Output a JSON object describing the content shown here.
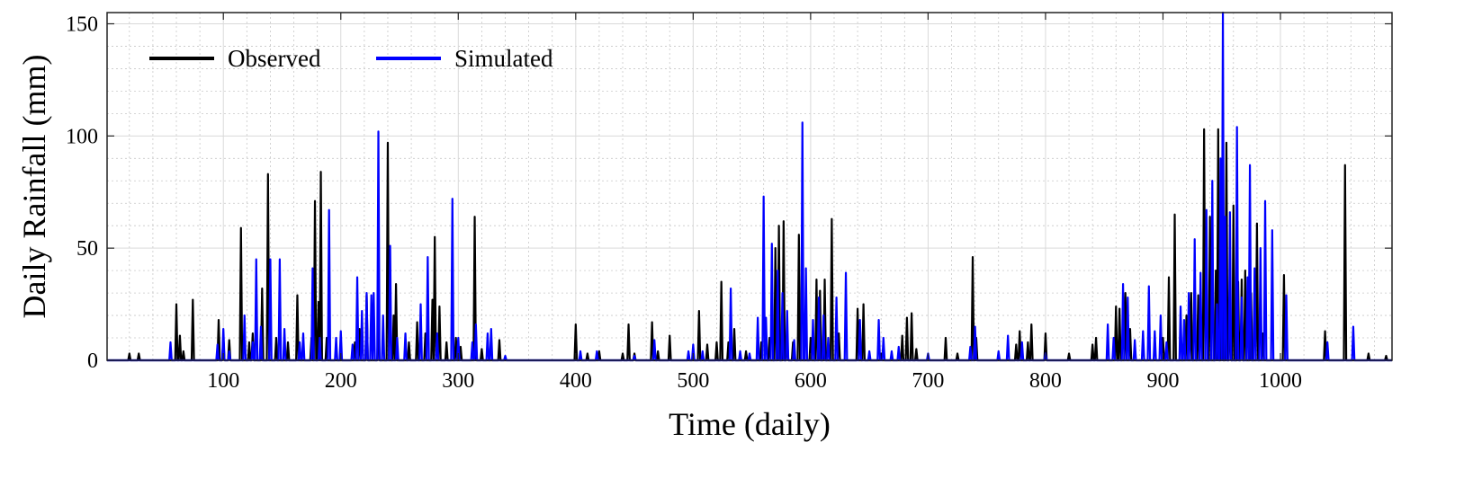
{
  "chart_data": {
    "type": "line",
    "title": "",
    "xlabel": "Time (daily)",
    "ylabel": "Daily Rainfall (mm)",
    "xlim": [
      1,
      1095
    ],
    "ylim": [
      0,
      155
    ],
    "x_ticks": [
      100,
      200,
      300,
      400,
      500,
      600,
      700,
      800,
      900,
      1000
    ],
    "y_ticks": [
      0,
      50,
      100,
      150
    ],
    "grid": true,
    "minor_grid": true,
    "legend_position": "top-left",
    "colors": {
      "observed": "#000000",
      "simulated": "#0000ff",
      "grid": "#d9d9d9"
    },
    "series": [
      {
        "name": "Observed",
        "color": "#000000",
        "peaks": [
          [
            20,
            3
          ],
          [
            28,
            3
          ],
          [
            60,
            25
          ],
          [
            63,
            11
          ],
          [
            66,
            4
          ],
          [
            74,
            27
          ],
          [
            96,
            18
          ],
          [
            100,
            10
          ],
          [
            105,
            9
          ],
          [
            115,
            59
          ],
          [
            122,
            8
          ],
          [
            125,
            12
          ],
          [
            133,
            32
          ],
          [
            138,
            83
          ],
          [
            145,
            10
          ],
          [
            155,
            8
          ],
          [
            163,
            29
          ],
          [
            175,
            10
          ],
          [
            178,
            71
          ],
          [
            181,
            26
          ],
          [
            183,
            84
          ],
          [
            188,
            10
          ],
          [
            212,
            8
          ],
          [
            216,
            14
          ],
          [
            222,
            29
          ],
          [
            232,
            20
          ],
          [
            240,
            97
          ],
          [
            245,
            20
          ],
          [
            247,
            34
          ],
          [
            258,
            8
          ],
          [
            265,
            17
          ],
          [
            272,
            12
          ],
          [
            278,
            27
          ],
          [
            280,
            55
          ],
          [
            284,
            24
          ],
          [
            290,
            8
          ],
          [
            298,
            10
          ],
          [
            302,
            6
          ],
          [
            314,
            64
          ],
          [
            320,
            5
          ],
          [
            335,
            9
          ],
          [
            400,
            16
          ],
          [
            410,
            3
          ],
          [
            420,
            4
          ],
          [
            440,
            3
          ],
          [
            445,
            16
          ],
          [
            450,
            3
          ],
          [
            465,
            17
          ],
          [
            470,
            4
          ],
          [
            480,
            11
          ],
          [
            505,
            22
          ],
          [
            512,
            7
          ],
          [
            520,
            8
          ],
          [
            524,
            35
          ],
          [
            530,
            8
          ],
          [
            535,
            14
          ],
          [
            545,
            4
          ],
          [
            558,
            8
          ],
          [
            565,
            10
          ],
          [
            570,
            50
          ],
          [
            573,
            60
          ],
          [
            577,
            62
          ],
          [
            580,
            10
          ],
          [
            585,
            8
          ],
          [
            590,
            56
          ],
          [
            600,
            10
          ],
          [
            605,
            36
          ],
          [
            608,
            31
          ],
          [
            612,
            36
          ],
          [
            618,
            63
          ],
          [
            624,
            12
          ],
          [
            640,
            23
          ],
          [
            645,
            25
          ],
          [
            660,
            3
          ],
          [
            678,
            11
          ],
          [
            682,
            19
          ],
          [
            686,
            21
          ],
          [
            690,
            5
          ],
          [
            715,
            10
          ],
          [
            725,
            3
          ],
          [
            738,
            46
          ],
          [
            741,
            10
          ],
          [
            775,
            7
          ],
          [
            778,
            13
          ],
          [
            785,
            8
          ],
          [
            788,
            16
          ],
          [
            800,
            12
          ],
          [
            820,
            3
          ],
          [
            840,
            7
          ],
          [
            843,
            10
          ],
          [
            860,
            24
          ],
          [
            863,
            23
          ],
          [
            868,
            30
          ],
          [
            872,
            14
          ],
          [
            900,
            10
          ],
          [
            905,
            37
          ],
          [
            910,
            65
          ],
          [
            920,
            20
          ],
          [
            924,
            30
          ],
          [
            930,
            29
          ],
          [
            935,
            103
          ],
          [
            940,
            64
          ],
          [
            945,
            40
          ],
          [
            947,
            103
          ],
          [
            950,
            88
          ],
          [
            954,
            97
          ],
          [
            957,
            26
          ],
          [
            960,
            69
          ],
          [
            964,
            35
          ],
          [
            967,
            36
          ],
          [
            970,
            40
          ],
          [
            975,
            30
          ],
          [
            980,
            61
          ],
          [
            985,
            12
          ],
          [
            1003,
            38
          ],
          [
            1038,
            13
          ],
          [
            1055,
            87
          ],
          [
            1075,
            3
          ],
          [
            1090,
            2
          ]
        ]
      },
      {
        "name": "Simulated",
        "color": "#0000ff",
        "peaks": [
          [
            55,
            8
          ],
          [
            95,
            7
          ],
          [
            100,
            14
          ],
          [
            105,
            4
          ],
          [
            118,
            20
          ],
          [
            125,
            8
          ],
          [
            128,
            45
          ],
          [
            132,
            15
          ],
          [
            140,
            45
          ],
          [
            148,
            45
          ],
          [
            152,
            14
          ],
          [
            165,
            8
          ],
          [
            168,
            12
          ],
          [
            176,
            41
          ],
          [
            182,
            10
          ],
          [
            190,
            67
          ],
          [
            196,
            10
          ],
          [
            200,
            13
          ],
          [
            210,
            7
          ],
          [
            214,
            37
          ],
          [
            218,
            22
          ],
          [
            222,
            30
          ],
          [
            226,
            29
          ],
          [
            228,
            30
          ],
          [
            232,
            102
          ],
          [
            236,
            20
          ],
          [
            242,
            51
          ],
          [
            248,
            10
          ],
          [
            255,
            12
          ],
          [
            268,
            25
          ],
          [
            274,
            46
          ],
          [
            282,
            12
          ],
          [
            295,
            72
          ],
          [
            300,
            10
          ],
          [
            312,
            8
          ],
          [
            315,
            16
          ],
          [
            325,
            12
          ],
          [
            328,
            14
          ],
          [
            340,
            2
          ],
          [
            404,
            4
          ],
          [
            418,
            4
          ],
          [
            450,
            2
          ],
          [
            467,
            9
          ],
          [
            496,
            4
          ],
          [
            500,
            7
          ],
          [
            508,
            4
          ],
          [
            532,
            32
          ],
          [
            540,
            4
          ],
          [
            548,
            3
          ],
          [
            555,
            19
          ],
          [
            560,
            73
          ],
          [
            562,
            19
          ],
          [
            567,
            52
          ],
          [
            572,
            40
          ],
          [
            576,
            30
          ],
          [
            580,
            22
          ],
          [
            586,
            9
          ],
          [
            593,
            106
          ],
          [
            596,
            41
          ],
          [
            602,
            18
          ],
          [
            607,
            28
          ],
          [
            611,
            20
          ],
          [
            615,
            10
          ],
          [
            622,
            28
          ],
          [
            630,
            39
          ],
          [
            642,
            18
          ],
          [
            650,
            4
          ],
          [
            658,
            18
          ],
          [
            662,
            10
          ],
          [
            669,
            4
          ],
          [
            675,
            6
          ],
          [
            700,
            3
          ],
          [
            736,
            6
          ],
          [
            740,
            15
          ],
          [
            760,
            4
          ],
          [
            768,
            11
          ],
          [
            780,
            8
          ],
          [
            800,
            3
          ],
          [
            853,
            16
          ],
          [
            858,
            10
          ],
          [
            866,
            34
          ],
          [
            870,
            28
          ],
          [
            876,
            9
          ],
          [
            883,
            13
          ],
          [
            888,
            33
          ],
          [
            893,
            13
          ],
          [
            898,
            20
          ],
          [
            903,
            8
          ],
          [
            915,
            24
          ],
          [
            918,
            18
          ],
          [
            922,
            30
          ],
          [
            927,
            54
          ],
          [
            932,
            39
          ],
          [
            937,
            67
          ],
          [
            942,
            80
          ],
          [
            946,
            25
          ],
          [
            949,
            90
          ],
          [
            951,
            155
          ],
          [
            953,
            64
          ],
          [
            957,
            66
          ],
          [
            963,
            104
          ],
          [
            967,
            28
          ],
          [
            972,
            37
          ],
          [
            974,
            87
          ],
          [
            978,
            41
          ],
          [
            983,
            50
          ],
          [
            987,
            71
          ],
          [
            993,
            58
          ],
          [
            1005,
            29
          ],
          [
            1040,
            8
          ],
          [
            1062,
            15
          ]
        ]
      }
    ]
  }
}
